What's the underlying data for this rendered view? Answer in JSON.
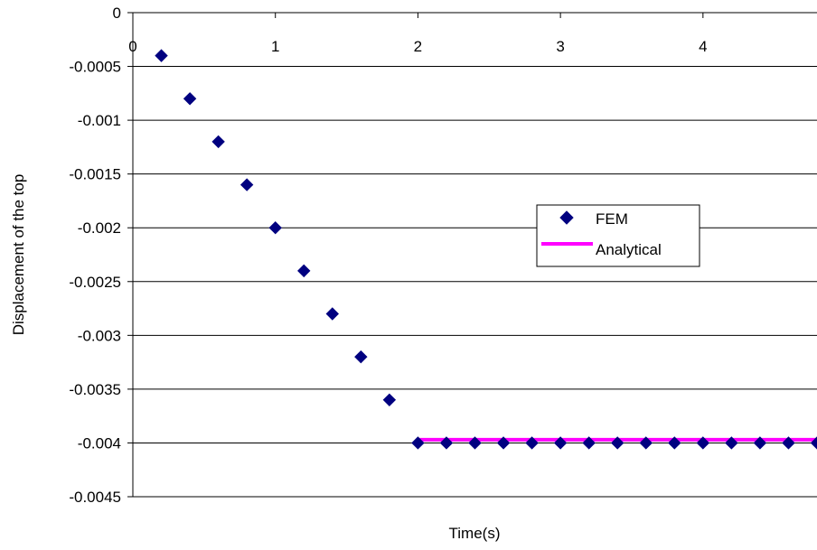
{
  "chart_data": {
    "type": "scatter",
    "title": "",
    "xlabel": "Time(s)",
    "ylabel": "Displacement of the top",
    "xlim": [
      0,
      4.8
    ],
    "ylim": [
      -0.0045,
      0
    ],
    "x_ticks": [
      0,
      1,
      2,
      3,
      4
    ],
    "x_tick_labels": [
      "0",
      "1",
      "2",
      "3",
      "4"
    ],
    "y_ticks": [
      0,
      -0.0005,
      -0.001,
      -0.0015,
      -0.002,
      -0.0025,
      -0.003,
      -0.0035,
      -0.004,
      -0.0045
    ],
    "y_tick_labels": [
      "0",
      "-0.0005",
      "-0.001",
      "-0.0015",
      "-0.002",
      "-0.0025",
      "-0.003",
      "-0.0035",
      "-0.004",
      "-0.0045"
    ],
    "grid": "horizontal",
    "legend_position": "center-right",
    "series": [
      {
        "name": "FEM",
        "kind": "markers",
        "marker": "diamond",
        "color": "#000080",
        "x": [
          0.2,
          0.4,
          0.6,
          0.8,
          1.0,
          1.2,
          1.4,
          1.6,
          1.8,
          2.0,
          2.2,
          2.4,
          2.6,
          2.8,
          3.0,
          3.2,
          3.4,
          3.6,
          3.8,
          4.0,
          4.2,
          4.4,
          4.6,
          4.8
        ],
        "y": [
          -0.0004,
          -0.0008,
          -0.0012,
          -0.0016,
          -0.002,
          -0.0024,
          -0.0028,
          -0.0032,
          -0.0036,
          -0.004,
          -0.004,
          -0.004,
          -0.004,
          -0.004,
          -0.004,
          -0.004,
          -0.004,
          -0.004,
          -0.004,
          -0.004,
          -0.004,
          -0.004,
          -0.004,
          -0.004
        ]
      },
      {
        "name": "Analytical",
        "kind": "line",
        "color": "#ff00ff",
        "x": [
          2.0,
          4.8
        ],
        "y": [
          -0.00397,
          -0.00397
        ]
      }
    ]
  }
}
